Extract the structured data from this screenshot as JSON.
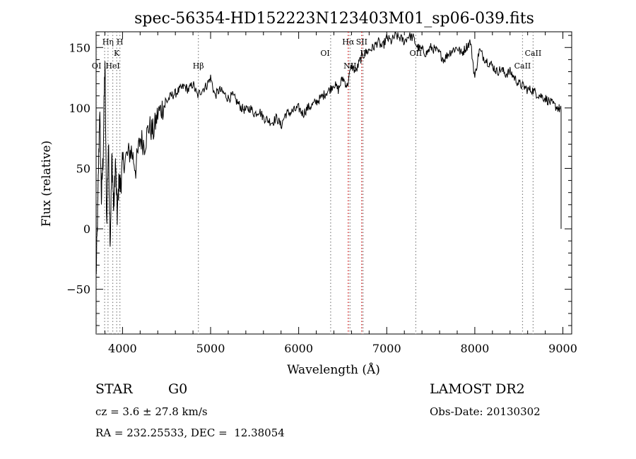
{
  "chart_data": {
    "type": "line",
    "title": "spec-56354-HD152223N123403M01_sp06-039.fits",
    "xlabel": "Wavelength (Å)",
    "ylabel": "Flux (relative)",
    "xlim": [
      3700,
      9100
    ],
    "ylim": [
      -87,
      163
    ],
    "x_ticks": [
      4000,
      5000,
      6000,
      7000,
      8000,
      9000
    ],
    "y_ticks": [
      -50,
      0,
      50,
      100,
      150
    ],
    "grid": false,
    "series": [
      {
        "x": [
          3700,
          3720,
          3740,
          3760,
          3780,
          3800,
          3820,
          3840,
          3860,
          3880,
          3900,
          3920,
          3940,
          3960,
          3980,
          4000,
          4050,
          4100,
          4150,
          4200,
          4250,
          4300,
          4350,
          4400,
          4450,
          4500,
          4550,
          4600,
          4650,
          4700,
          4750,
          4800,
          4850,
          4900,
          4950,
          5000,
          5050,
          5100,
          5150,
          5200,
          5250,
          5300,
          5350,
          5400,
          5450,
          5500,
          5550,
          5600,
          5650,
          5700,
          5750,
          5800,
          5850,
          5900,
          5950,
          6000,
          6050,
          6100,
          6150,
          6200,
          6250,
          6300,
          6350,
          6400,
          6450,
          6500,
          6550,
          6600,
          6650,
          6700,
          6750,
          6800,
          6850,
          6900,
          6950,
          7000,
          7050,
          7100,
          7150,
          7200,
          7250,
          7300,
          7350,
          7400,
          7450,
          7500,
          7550,
          7600,
          7650,
          7700,
          7750,
          7800,
          7850,
          7900,
          7950,
          8000,
          8050,
          8100,
          8150,
          8200,
          8250,
          8300,
          8350,
          8400,
          8450,
          8500,
          8550,
          8600,
          8650,
          8700,
          8750,
          8800,
          8850,
          8900,
          8950,
          8980
        ],
        "values": [
          -40,
          20,
          100,
          25,
          60,
          140,
          5,
          70,
          -10,
          60,
          15,
          55,
          10,
          40,
          35,
          55,
          60,
          65,
          50,
          75,
          70,
          85,
          80,
          95,
          100,
          105,
          110,
          112,
          115,
          118,
          115,
          120,
          110,
          115,
          118,
          125,
          110,
          115,
          112,
          108,
          110,
          105,
          100,
          98,
          100,
          95,
          98,
          92,
          90,
          88,
          92,
          85,
          95,
          96,
          98,
          100,
          95,
          100,
          102,
          105,
          108,
          112,
          115,
          120,
          115,
          125,
          118,
          135,
          130,
          140,
          145,
          148,
          150,
          155,
          150,
          158,
          155,
          160,
          158,
          155,
          160,
          158,
          150,
          148,
          145,
          150,
          148,
          145,
          140,
          145,
          148,
          150,
          145,
          150,
          155,
          125,
          148,
          142,
          138,
          135,
          130,
          132,
          128,
          130,
          125,
          120,
          118,
          115,
          115,
          112,
          110,
          108,
          105,
          102,
          100,
          98
        ]
      }
    ],
    "line_labels": [
      {
        "name": "OI",
        "x": 3705,
        "row": 4
      },
      {
        "name": "Hη",
        "x": 3835,
        "row": 1
      },
      {
        "name": "H",
        "x": 3970,
        "row": 1
      },
      {
        "name": "K",
        "x": 3934,
        "row": 2
      },
      {
        "name": "HeI",
        "x": 3889,
        "row": 4
      },
      {
        "name": "Hβ",
        "x": 4861,
        "row": 4
      },
      {
        "name": "OI",
        "x": 6300,
        "row": 3
      },
      {
        "name": "Hα",
        "x": 6563,
        "row": 1
      },
      {
        "name": "SII",
        "x": 6716,
        "row": 1
      },
      {
        "name": "II",
        "x": 6731,
        "row": 3
      },
      {
        "name": "NII",
        "x": 6583,
        "row": 4
      },
      {
        "name": "OII",
        "x": 7330,
        "row": 3
      },
      {
        "name": "CaII",
        "x": 8662,
        "row": 3
      },
      {
        "name": "CaII",
        "x": 8542,
        "row": 4
      }
    ],
    "line_markers": [
      {
        "x": 3705,
        "color": "#808080"
      },
      {
        "x": 3797,
        "color": "#808080"
      },
      {
        "x": 3835,
        "color": "#808080"
      },
      {
        "x": 3889,
        "color": "#808080"
      },
      {
        "x": 3934,
        "color": "#808080"
      },
      {
        "x": 3970,
        "color": "#808080"
      },
      {
        "x": 4861,
        "color": "#808080"
      },
      {
        "x": 6363,
        "color": "#808080"
      },
      {
        "x": 6563,
        "color": "#cc0000"
      },
      {
        "x": 6583,
        "color": "#808080"
      },
      {
        "x": 6716,
        "color": "#cc0000"
      },
      {
        "x": 6731,
        "color": "#808080"
      },
      {
        "x": 7330,
        "color": "#808080"
      },
      {
        "x": 8542,
        "color": "#808080"
      },
      {
        "x": 8662,
        "color": "#808080"
      }
    ]
  },
  "info": {
    "class_label": "STAR",
    "subclass": "G0",
    "cz_text": "cz = 3.6 ± 27.8 km/s",
    "coords_text": "RA = 232.25533, DEC =  12.38054",
    "survey": "LAMOST DR2",
    "obs_date": "Obs-Date: 20130302"
  }
}
